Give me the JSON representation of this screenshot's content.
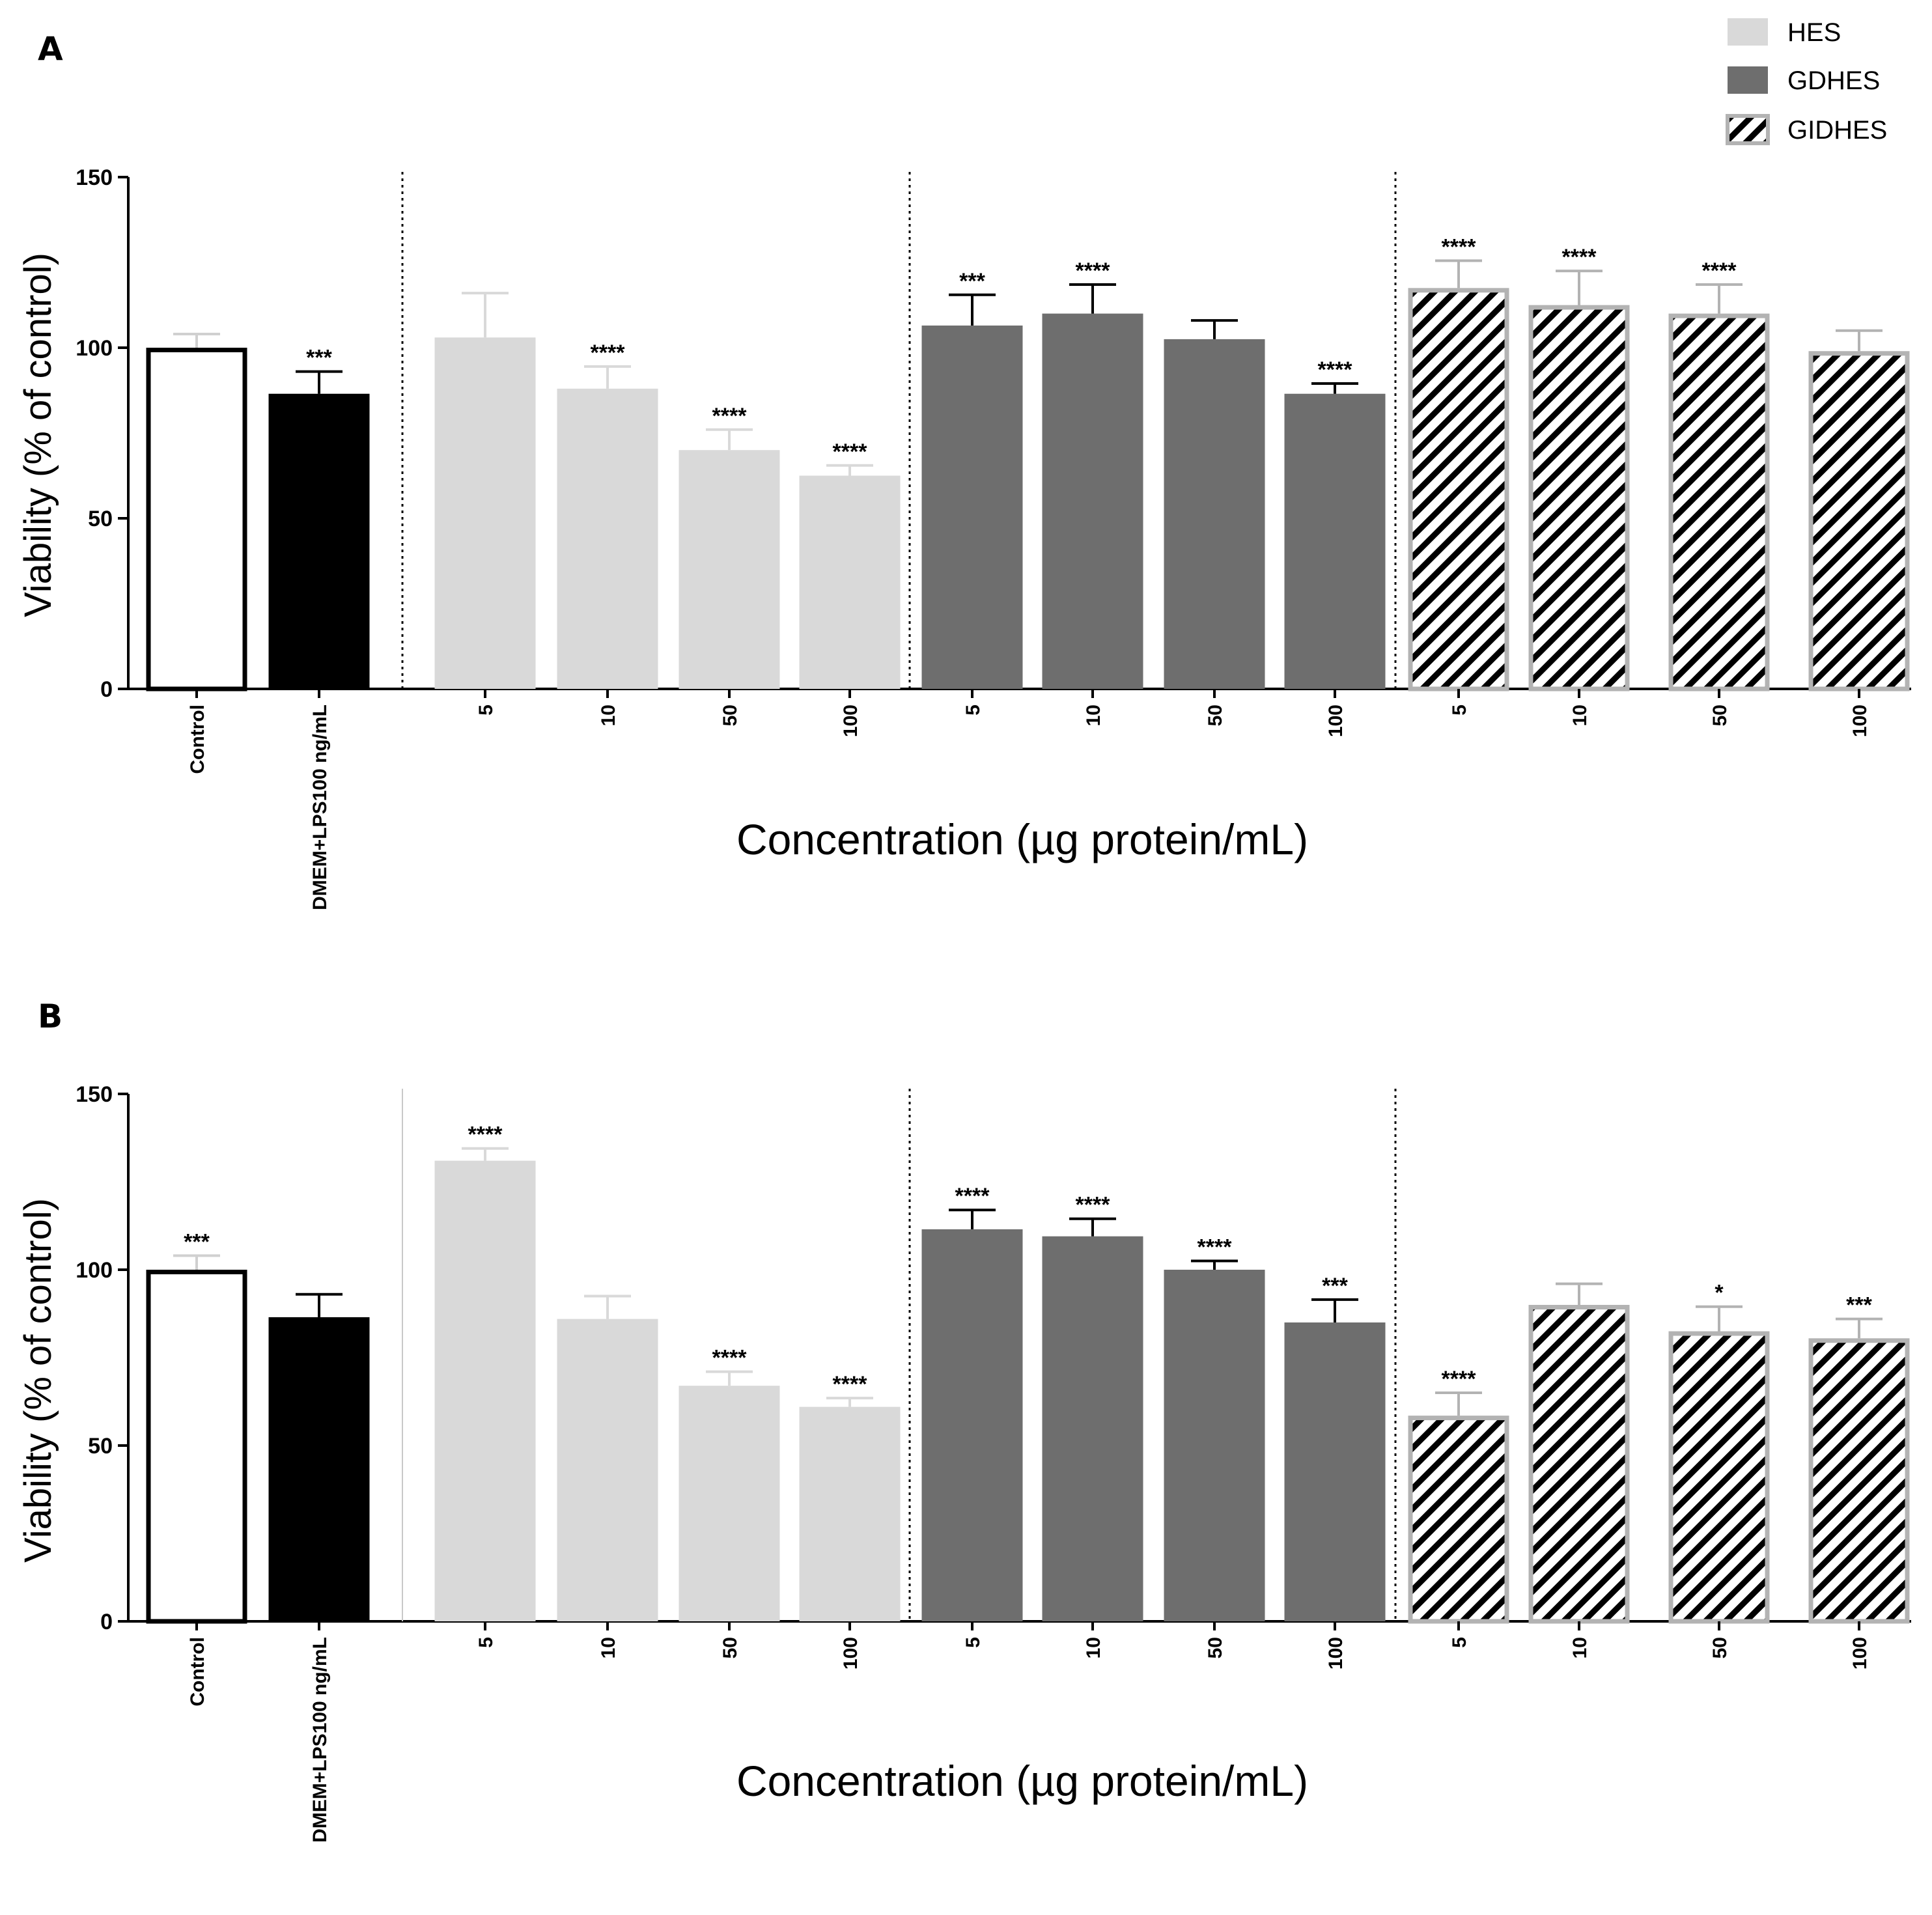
{
  "colors": {
    "control_fill": "#ffffff",
    "control_edge": "#000000",
    "lps_fill": "#000000",
    "hes_fill": "#d9d9d9",
    "gdhes_fill": "#6e6e6e",
    "gidhes_edge": "#b3b3b3",
    "hatch": "#000000",
    "axis": "#000000"
  },
  "legend": [
    {
      "name": "HES",
      "style": "hes"
    },
    {
      "name": "GDHES",
      "style": "gdhes"
    },
    {
      "name": "GIDHES",
      "style": "gidhes"
    }
  ],
  "chart_data": [
    {
      "type": "bar",
      "panel": "A",
      "ylabel": "Viability (%  of control)",
      "xlabel": "Concentration (µg protein/mL)",
      "ylim": [
        0,
        150
      ],
      "yticks": [
        0,
        50,
        100,
        150
      ],
      "categories": [
        "Control",
        "DMEM+LPS100 ng/mL",
        "5",
        "10",
        "50",
        "100",
        "5",
        "10",
        "50",
        "100",
        "5",
        "10",
        "50",
        "100"
      ],
      "groups": [
        "control",
        "lps",
        "hes",
        "hes",
        "hes",
        "hes",
        "gdhes",
        "gdhes",
        "gdhes",
        "gdhes",
        "gidhes",
        "gidhes",
        "gidhes",
        "gidhes"
      ],
      "values": [
        100,
        86.5,
        103,
        88,
        70,
        62.5,
        106.5,
        110,
        102.5,
        86.5,
        117.5,
        112.5,
        110,
        99
      ],
      "errors": [
        4,
        6.5,
        13,
        6.5,
        6,
        3,
        9,
        8.5,
        5.5,
        3,
        8,
        10,
        8.5,
        6
      ],
      "significance": [
        "",
        "***",
        "",
        "****",
        "****",
        "****",
        "***",
        "****",
        "",
        "****",
        "****",
        "****",
        "****",
        ""
      ],
      "separators": [
        "dotted",
        "dotted",
        "dotted"
      ]
    },
    {
      "type": "bar",
      "panel": "B",
      "ylabel": "Viability (%  of control)",
      "xlabel": "Concentration (µg protein/mL)",
      "ylim": [
        0,
        150
      ],
      "yticks": [
        0,
        50,
        100,
        150
      ],
      "categories": [
        "Control",
        "DMEM+LPS100 ng/mL",
        "5",
        "10",
        "50",
        "100",
        "5",
        "10",
        "50",
        "100",
        "5",
        "10",
        "50",
        "100"
      ],
      "groups": [
        "control",
        "lps",
        "hes",
        "hes",
        "hes",
        "hes",
        "gdhes",
        "gdhes",
        "gdhes",
        "gdhes",
        "gidhes",
        "gidhes",
        "gidhes",
        "gidhes"
      ],
      "values": [
        100,
        86.5,
        131,
        86,
        67,
        61,
        111.5,
        109.5,
        100,
        85,
        58.5,
        90,
        82.5,
        80.5
      ],
      "errors": [
        4,
        6.5,
        3.5,
        6.5,
        4,
        2.5,
        5.5,
        5,
        2.5,
        6.5,
        6.5,
        6,
        7,
        5.5
      ],
      "significance": [
        "***",
        "",
        "****",
        "",
        "****",
        "****",
        "****",
        "****",
        "****",
        "***",
        "****",
        "",
        "*",
        "***"
      ],
      "separators": [
        "solid",
        "dotted",
        "dotted"
      ]
    }
  ]
}
